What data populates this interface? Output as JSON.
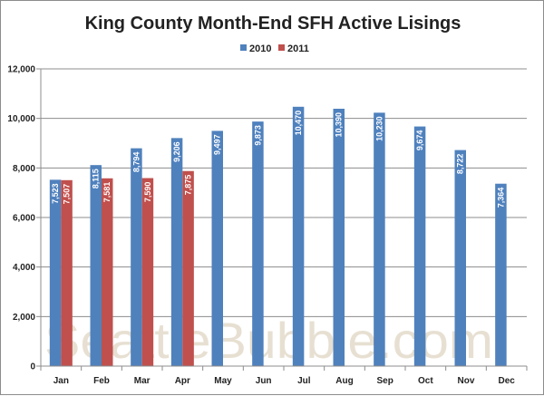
{
  "chart_data": {
    "type": "bar",
    "title": "King County Month-End SFH Active Lisings",
    "watermark": "SeattleBubble.com",
    "categories": [
      "Jan",
      "Feb",
      "Mar",
      "Apr",
      "May",
      "Jun",
      "Jul",
      "Aug",
      "Sep",
      "Oct",
      "Nov",
      "Dec"
    ],
    "series": [
      {
        "name": "2010",
        "color": "#4f81bd",
        "values": [
          7523,
          8115,
          8794,
          9206,
          9497,
          9873,
          10470,
          10390,
          10230,
          9674,
          8722,
          7364
        ],
        "labels": [
          "7,523",
          "8,115",
          "8,794",
          "9,206",
          "9,497",
          "9,873",
          "10,470",
          "10,390",
          "10,230",
          "9,674",
          "8,722",
          "7,364"
        ]
      },
      {
        "name": "2011",
        "color": "#c0504d",
        "values": [
          7507,
          7581,
          7590,
          7875,
          null,
          null,
          null,
          null,
          null,
          null,
          null,
          null
        ],
        "labels": [
          "7,507",
          "7,581",
          "7,590",
          "7,875",
          "",
          "",
          "",
          "",
          "",
          "",
          "",
          ""
        ]
      }
    ],
    "ylim": [
      0,
      12000
    ],
    "yticks": [
      0,
      2000,
      4000,
      6000,
      8000,
      10000,
      12000
    ],
    "ytick_labels": [
      "0",
      "2,000",
      "4,000",
      "6,000",
      "8,000",
      "10,000",
      "12,000"
    ],
    "grid": true,
    "legend_position": "top"
  }
}
